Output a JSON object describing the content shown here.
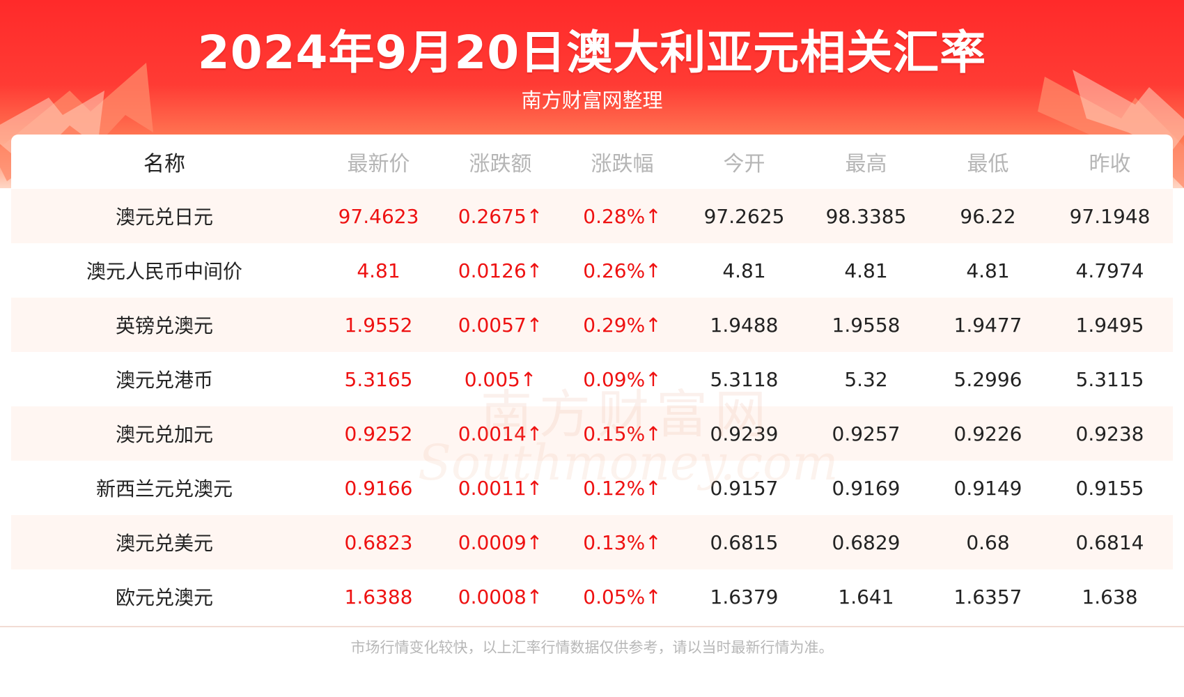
{
  "header": {
    "title": "2024年9月20日澳大利亚元相关汇率",
    "subtitle": "南方财富网整理"
  },
  "colors": {
    "header_red": "#ff2a2a",
    "up_red": "#ee1111",
    "row_alt": "#fff6f2",
    "header_text_gray": "#b5b5b5"
  },
  "table": {
    "columns": [
      "名称",
      "最新价",
      "涨跌额",
      "涨跌幅",
      "今开",
      "最高",
      "最低",
      "昨收"
    ],
    "rows": [
      [
        "澳元兑日元",
        "97.4623",
        "0.2675↑",
        "0.28%↑",
        "97.2625",
        "98.3385",
        "96.22",
        "97.1948"
      ],
      [
        "澳元人民币中间价",
        "4.81",
        "0.0126↑",
        "0.26%↑",
        "4.81",
        "4.81",
        "4.81",
        "4.7974"
      ],
      [
        "英镑兑澳元",
        "1.9552",
        "0.0057↑",
        "0.29%↑",
        "1.9488",
        "1.9558",
        "1.9477",
        "1.9495"
      ],
      [
        "澳元兑港币",
        "5.3165",
        "0.005↑",
        "0.09%↑",
        "5.3118",
        "5.32",
        "5.2996",
        "5.3115"
      ],
      [
        "澳元兑加元",
        "0.9252",
        "0.0014↑",
        "0.15%↑",
        "0.9239",
        "0.9257",
        "0.9226",
        "0.9238"
      ],
      [
        "新西兰元兑澳元",
        "0.9166",
        "0.0011↑",
        "0.12%↑",
        "0.9157",
        "0.9169",
        "0.9149",
        "0.9155"
      ],
      [
        "澳元兑美元",
        "0.6823",
        "0.0009↑",
        "0.13%↑",
        "0.6815",
        "0.6829",
        "0.68",
        "0.6814"
      ],
      [
        "欧元兑澳元",
        "1.6388",
        "0.0008↑",
        "0.05%↑",
        "1.6379",
        "1.641",
        "1.6357",
        "1.638"
      ]
    ]
  },
  "watermark": {
    "cn": "南方财富网",
    "en": "Southmoney.com"
  },
  "footer": {
    "disclaimer": "市场行情变化较快，以上汇率行情数据仅供参考，请以当时最新行情为准。"
  }
}
